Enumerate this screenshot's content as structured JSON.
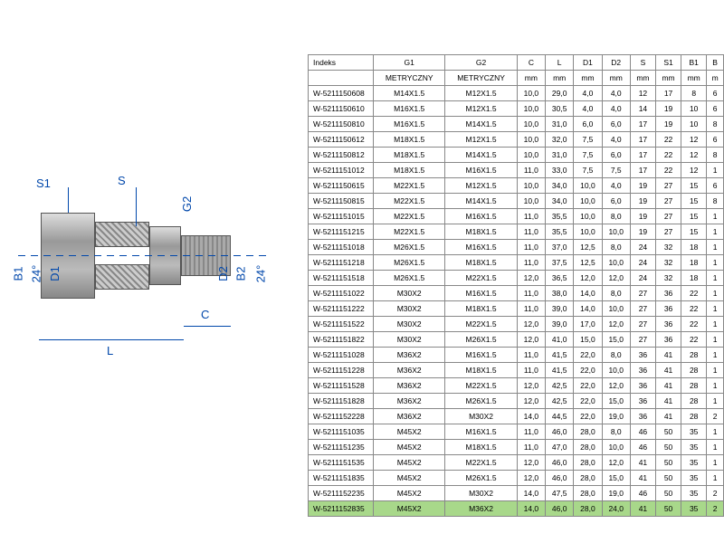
{
  "diagram": {
    "labels": {
      "S1": "S1",
      "S": "S",
      "G2": "G2",
      "B1": "B1",
      "D1": "D1",
      "angle1": "24°",
      "D2": "D2",
      "B2": "B2",
      "angle2": "24°",
      "L": "L",
      "C": "C"
    },
    "colors": {
      "line": "#0047ab",
      "metal_light": "#ddd",
      "metal_dark": "#888"
    }
  },
  "table": {
    "header1": [
      "Indeks",
      "G1",
      "G2",
      "C",
      "L",
      "D1",
      "D2",
      "S",
      "S1",
      "B1",
      "B"
    ],
    "header2": [
      "",
      "METRYCZNY",
      "METRYCZNY",
      "mm",
      "mm",
      "mm",
      "mm",
      "mm",
      "mm",
      "mm",
      "m"
    ],
    "rows": [
      [
        "W-5211150608",
        "M14X1.5",
        "M12X1.5",
        "10,0",
        "29,0",
        "4,0",
        "4,0",
        "12",
        "17",
        "8",
        "6"
      ],
      [
        "W-5211150610",
        "M16X1.5",
        "M12X1.5",
        "10,0",
        "30,5",
        "4,0",
        "4,0",
        "14",
        "19",
        "10",
        "6"
      ],
      [
        "W-5211150810",
        "M16X1.5",
        "M14X1.5",
        "10,0",
        "31,0",
        "6,0",
        "6,0",
        "17",
        "19",
        "10",
        "8"
      ],
      [
        "W-5211150612",
        "M18X1.5",
        "M12X1.5",
        "10,0",
        "32,0",
        "7,5",
        "4,0",
        "17",
        "22",
        "12",
        "6"
      ],
      [
        "W-5211150812",
        "M18X1.5",
        "M14X1.5",
        "10,0",
        "31,0",
        "7,5",
        "6,0",
        "17",
        "22",
        "12",
        "8"
      ],
      [
        "W-5211151012",
        "M18X1.5",
        "M16X1.5",
        "11,0",
        "33,0",
        "7,5",
        "7,5",
        "17",
        "22",
        "12",
        "1"
      ],
      [
        "W-5211150615",
        "M22X1.5",
        "M12X1.5",
        "10,0",
        "34,0",
        "10,0",
        "4,0",
        "19",
        "27",
        "15",
        "6"
      ],
      [
        "W-5211150815",
        "M22X1.5",
        "M14X1.5",
        "10,0",
        "34,0",
        "10,0",
        "6,0",
        "19",
        "27",
        "15",
        "8"
      ],
      [
        "W-5211151015",
        "M22X1.5",
        "M16X1.5",
        "11,0",
        "35,5",
        "10,0",
        "8,0",
        "19",
        "27",
        "15",
        "1"
      ],
      [
        "W-5211151215",
        "M22X1.5",
        "M18X1.5",
        "11,0",
        "35,5",
        "10,0",
        "10,0",
        "19",
        "27",
        "15",
        "1"
      ],
      [
        "W-5211151018",
        "M26X1.5",
        "M16X1.5",
        "11,0",
        "37,0",
        "12,5",
        "8,0",
        "24",
        "32",
        "18",
        "1"
      ],
      [
        "W-5211151218",
        "M26X1.5",
        "M18X1.5",
        "11,0",
        "37,5",
        "12,5",
        "10,0",
        "24",
        "32",
        "18",
        "1"
      ],
      [
        "W-5211151518",
        "M26X1.5",
        "M22X1.5",
        "12,0",
        "36,5",
        "12,0",
        "12,0",
        "24",
        "32",
        "18",
        "1"
      ],
      [
        "W-5211151022",
        "M30X2",
        "M16X1.5",
        "11,0",
        "38,0",
        "14,0",
        "8,0",
        "27",
        "36",
        "22",
        "1"
      ],
      [
        "W-5211151222",
        "M30X2",
        "M18X1.5",
        "11,0",
        "39,0",
        "14,0",
        "10,0",
        "27",
        "36",
        "22",
        "1"
      ],
      [
        "W-5211151522",
        "M30X2",
        "M22X1.5",
        "12,0",
        "39,0",
        "17,0",
        "12,0",
        "27",
        "36",
        "22",
        "1"
      ],
      [
        "W-5211151822",
        "M30X2",
        "M26X1.5",
        "12,0",
        "41,0",
        "15,0",
        "15,0",
        "27",
        "36",
        "22",
        "1"
      ],
      [
        "W-5211151028",
        "M36X2",
        "M16X1.5",
        "11,0",
        "41,5",
        "22,0",
        "8,0",
        "36",
        "41",
        "28",
        "1"
      ],
      [
        "W-5211151228",
        "M36X2",
        "M18X1.5",
        "11,0",
        "41,5",
        "22,0",
        "10,0",
        "36",
        "41",
        "28",
        "1"
      ],
      [
        "W-5211151528",
        "M36X2",
        "M22X1.5",
        "12,0",
        "42,5",
        "22,0",
        "12,0",
        "36",
        "41",
        "28",
        "1"
      ],
      [
        "W-5211151828",
        "M36X2",
        "M26X1.5",
        "12,0",
        "42,5",
        "22,0",
        "15,0",
        "36",
        "41",
        "28",
        "1"
      ],
      [
        "W-5211152228",
        "M36X2",
        "M30X2",
        "14,0",
        "44,5",
        "22,0",
        "19,0",
        "36",
        "41",
        "28",
        "2"
      ],
      [
        "W-5211151035",
        "M45X2",
        "M16X1.5",
        "11,0",
        "46,0",
        "28,0",
        "8,0",
        "46",
        "50",
        "35",
        "1"
      ],
      [
        "W-5211151235",
        "M45X2",
        "M18X1.5",
        "11,0",
        "47,0",
        "28,0",
        "10,0",
        "46",
        "50",
        "35",
        "1"
      ],
      [
        "W-5211151535",
        "M45X2",
        "M22X1.5",
        "12,0",
        "46,0",
        "28,0",
        "12,0",
        "41",
        "50",
        "35",
        "1"
      ],
      [
        "W-5211151835",
        "M45X2",
        "M26X1.5",
        "12,0",
        "46,0",
        "28,0",
        "15,0",
        "41",
        "50",
        "35",
        "1"
      ],
      [
        "W-5211152235",
        "M45X2",
        "M30X2",
        "14,0",
        "47,5",
        "28,0",
        "19,0",
        "46",
        "50",
        "35",
        "2"
      ]
    ],
    "highlight_row": [
      "W-5211152835",
      "M45X2",
      "M36X2",
      "14,0",
      "46,0",
      "28,0",
      "24,0",
      "41",
      "50",
      "35",
      "2"
    ]
  }
}
